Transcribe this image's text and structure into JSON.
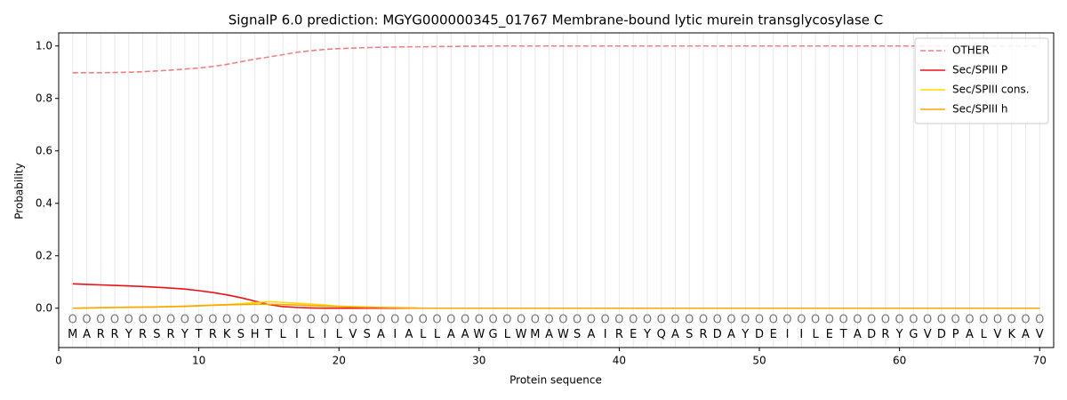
{
  "chart_data": {
    "type": "line",
    "title": "SignalP 6.0 prediction: MGYG000000345_01767 Membrane-bound lytic murein transglycosylase C",
    "x_label": "Protein sequence",
    "y_label": "Probability",
    "xlim": [
      0,
      71
    ],
    "ylim": [
      -0.15,
      1.05
    ],
    "xticks": [
      0,
      10,
      20,
      30,
      40,
      50,
      60,
      70
    ],
    "yticks": [
      {
        "value": 0,
        "label": "0.0"
      },
      {
        "value": 0.2,
        "label": "0.2"
      },
      {
        "value": 0.4,
        "label": "0.4"
      },
      {
        "value": 0.6,
        "label": "0.6"
      },
      {
        "value": 0.8,
        "label": "0.8"
      },
      {
        "value": 1,
        "label": "1.0"
      }
    ],
    "legend": "upper right",
    "x": [
      1,
      2,
      3,
      4,
      5,
      6,
      7,
      8,
      9,
      10,
      11,
      12,
      13,
      14,
      15,
      16,
      17,
      18,
      19,
      20,
      21,
      22,
      23,
      24,
      25,
      26,
      27,
      28,
      29,
      30,
      31,
      32,
      33,
      34,
      35,
      36,
      37,
      38,
      39,
      40,
      41,
      42,
      43,
      44,
      45,
      46,
      47,
      48,
      49,
      50,
      51,
      52,
      53,
      54,
      55,
      56,
      57,
      58,
      59,
      60,
      61,
      62,
      63,
      64,
      65,
      66,
      67,
      68,
      69,
      70
    ],
    "sequence": [
      "M",
      "A",
      "R",
      "R",
      "Y",
      "R",
      "S",
      "R",
      "Y",
      "T",
      "R",
      "K",
      "S",
      "H",
      "T",
      "L",
      "I",
      "L",
      "I",
      "L",
      "V",
      "S",
      "A",
      "I",
      "A",
      "L",
      "L",
      "A",
      "A",
      "W",
      "G",
      "L",
      "W",
      "M",
      "A",
      "W",
      "S",
      "A",
      "I",
      "R",
      "E",
      "Y",
      "Q",
      "A",
      "S",
      "R",
      "D",
      "A",
      "Y",
      "D",
      "E",
      "I",
      "I",
      "L",
      "E",
      "T",
      "A",
      "D",
      "R",
      "Y",
      "G",
      "V",
      "D",
      "P",
      "A",
      "L",
      "V",
      "K",
      "A",
      "V"
    ],
    "labels": [
      "O",
      "O",
      "O",
      "O",
      "O",
      "O",
      "O",
      "O",
      "O",
      "O",
      "O",
      "O",
      "O",
      "O",
      "O",
      "O",
      "O",
      "O",
      "O",
      "O",
      "O",
      "O",
      "O",
      "O",
      "O",
      "O",
      "O",
      "O",
      "O",
      "O",
      "O",
      "O",
      "O",
      "O",
      "O",
      "O",
      "O",
      "O",
      "O",
      "O",
      "O",
      "O",
      "O",
      "O",
      "O",
      "O",
      "O",
      "O",
      "O",
      "O",
      "O",
      "O",
      "O",
      "O",
      "O",
      "O",
      "O",
      "O",
      "O",
      "O",
      "O",
      "O",
      "O",
      "O",
      "O",
      "O",
      "O",
      "O",
      "O",
      "O"
    ],
    "series": [
      {
        "name": "OTHER",
        "color": "#f08080",
        "style": "dashed",
        "values": [
          0.898,
          0.898,
          0.898,
          0.899,
          0.9,
          0.902,
          0.905,
          0.908,
          0.912,
          0.916,
          0.922,
          0.93,
          0.94,
          0.95,
          0.958,
          0.967,
          0.976,
          0.982,
          0.987,
          0.99,
          0.992,
          0.994,
          0.995,
          0.996,
          0.997,
          0.997,
          0.998,
          0.998,
          0.999,
          0.999,
          1,
          1,
          1,
          1,
          1,
          1,
          1,
          1,
          1,
          1,
          1,
          1,
          1,
          1,
          1,
          1,
          1,
          1,
          1,
          1,
          1,
          1,
          1,
          1,
          1,
          1,
          1,
          1,
          1,
          1,
          1,
          1,
          1,
          1,
          1,
          1,
          1,
          1,
          1,
          1
        ]
      },
      {
        "name": "Sec/SPIII P",
        "color": "#ee1111",
        "style": "solid",
        "values": [
          0.093,
          0.091,
          0.089,
          0.087,
          0.085,
          0.083,
          0.08,
          0.077,
          0.073,
          0.067,
          0.06,
          0.051,
          0.04,
          0.027,
          0.014,
          0.006,
          0.003,
          0.001,
          0,
          0,
          0,
          0,
          0,
          0,
          0,
          0,
          0,
          0,
          0,
          0,
          0,
          0,
          0,
          0,
          0,
          0,
          0,
          0,
          0,
          0,
          0,
          0,
          0,
          0,
          0,
          0,
          0,
          0,
          0,
          0,
          0,
          0,
          0,
          0,
          0,
          0,
          0,
          0,
          0,
          0,
          0,
          0,
          0,
          0,
          0,
          0,
          0,
          0,
          0,
          0
        ]
      },
      {
        "name": "Sec/SPIII cons.",
        "color": "#ffd700",
        "style": "solid",
        "values": [
          0,
          0.001,
          0.002,
          0.003,
          0.003,
          0.004,
          0.005,
          0.006,
          0.008,
          0.01,
          0.012,
          0.014,
          0.017,
          0.021,
          0.025,
          0.022,
          0.019,
          0.016,
          0.012,
          0.008,
          0.006,
          0.004,
          0.003,
          0.002,
          0.001,
          0,
          0,
          0,
          0,
          0,
          0,
          0,
          0,
          0,
          0,
          0,
          0,
          0,
          0,
          0,
          0,
          0,
          0,
          0,
          0,
          0,
          0,
          0,
          0,
          0,
          0,
          0,
          0,
          0,
          0,
          0,
          0,
          0,
          0,
          0,
          0,
          0,
          0,
          0,
          0,
          0,
          0,
          0,
          0,
          0
        ]
      },
      {
        "name": "Sec/SPIII h",
        "color": "#ffa500",
        "style": "solid",
        "values": [
          0,
          0.001,
          0.002,
          0.003,
          0.004,
          0.004,
          0.005,
          0.006,
          0.007,
          0.009,
          0.011,
          0.013,
          0.014,
          0.015,
          0.015,
          0.014,
          0.012,
          0.01,
          0.008,
          0.006,
          0.005,
          0.004,
          0.003,
          0.002,
          0.001,
          0,
          0,
          0,
          0,
          0,
          0,
          0,
          0,
          0,
          0,
          0,
          0,
          0,
          0,
          0,
          0,
          0,
          0,
          0,
          0,
          0,
          0,
          0,
          0,
          0,
          0,
          0,
          0,
          0,
          0,
          0,
          0,
          0,
          0,
          0,
          0,
          0,
          0,
          0,
          0,
          0,
          0,
          0,
          0,
          0
        ]
      }
    ]
  }
}
